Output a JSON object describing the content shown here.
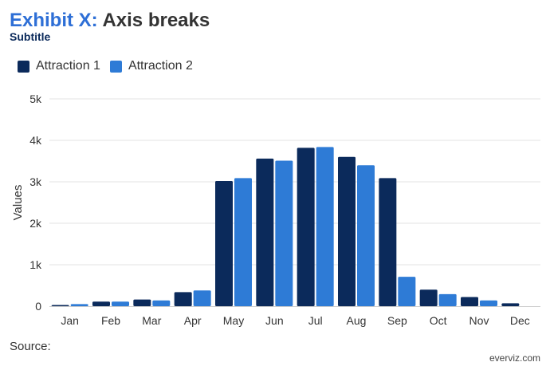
{
  "header": {
    "title_lead": "Exhibit X:",
    "title_rest": "Axis breaks",
    "subtitle": "Subtitle"
  },
  "footer": {
    "source": "Source:",
    "credit": "everviz.com"
  },
  "colors": {
    "series1": "#0b2a5b",
    "series2": "#2e7bd6",
    "grid": "#e3e3e3",
    "axis_text": "#333333"
  },
  "chart_data": {
    "type": "bar",
    "title": "Exhibit X: Axis breaks",
    "subtitle": "Subtitle",
    "xlabel": "",
    "ylabel": "Values",
    "ylim": [
      0,
      5000
    ],
    "yticks": [
      0,
      1000,
      2000,
      3000,
      4000,
      5000
    ],
    "ytick_labels": [
      "0",
      "1k",
      "2k",
      "3k",
      "4k",
      "5k"
    ],
    "grid": true,
    "legend": "top-left",
    "categories": [
      "Jan",
      "Feb",
      "Mar",
      "Apr",
      "May",
      "Jun",
      "Jul",
      "Aug",
      "Sep",
      "Oct",
      "Nov",
      "Dec"
    ],
    "series": [
      {
        "name": "Attraction 1",
        "values": [
          30,
          110,
          160,
          340,
          3020,
          3560,
          3820,
          3600,
          3090,
          400,
          220,
          70
        ]
      },
      {
        "name": "Attraction 2",
        "values": [
          50,
          110,
          140,
          380,
          3090,
          3510,
          3840,
          3400,
          710,
          290,
          140,
          0
        ]
      }
    ]
  }
}
